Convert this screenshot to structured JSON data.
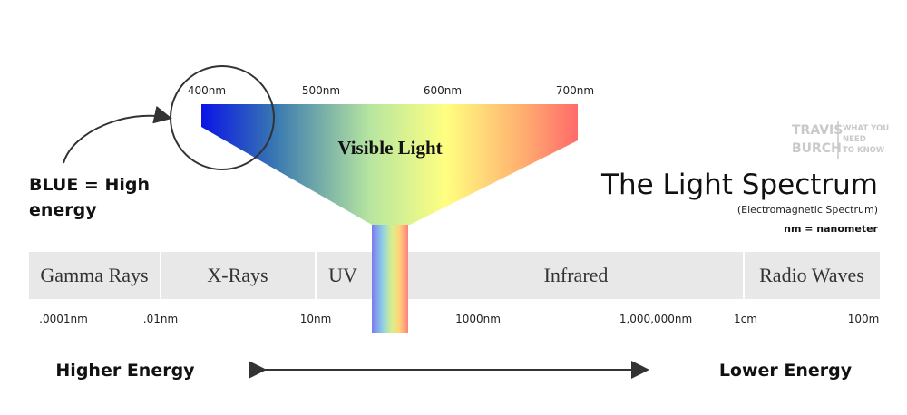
{
  "logo": {
    "name": [
      "TRAVIS",
      "BURCH"
    ],
    "tagline": [
      "WHAT YOU",
      "NEED",
      "TO KNOW"
    ]
  },
  "title": "The Light Spectrum",
  "subtitle": "(Electromagnetic Spectrum)",
  "note": "nm = nanometer",
  "annotation": [
    "BLUE = High",
    "energy"
  ],
  "visible_light": {
    "label": "Visible Light",
    "wavelengths": [
      "400nm",
      "500nm",
      "600nm",
      "700nm"
    ]
  },
  "bands": [
    "Gamma Rays",
    "X-Rays",
    "UV",
    "Infrared",
    "Radio Waves"
  ],
  "scale": [
    ".0001nm",
    ".01nm",
    "10nm",
    "1000nm",
    "1,000,000nm",
    "1cm",
    "100m"
  ],
  "energy": {
    "left": "Higher Energy",
    "right": "Lower Energy"
  }
}
